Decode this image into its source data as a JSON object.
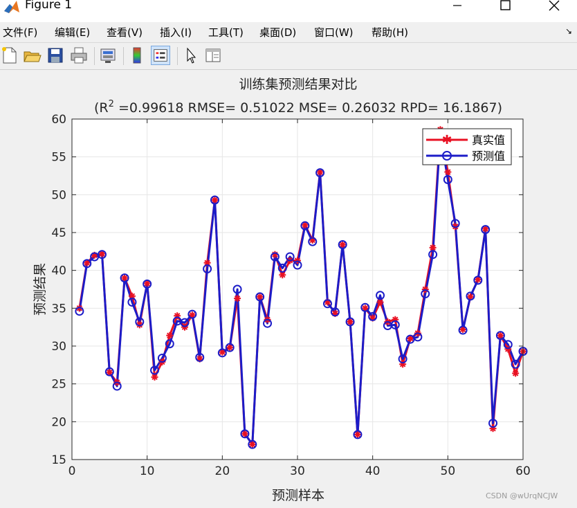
{
  "window": {
    "title": "Figure 1"
  },
  "menu": {
    "items": [
      "文件(F)",
      "编辑(E)",
      "查看(V)",
      "插入(I)",
      "工具(T)",
      "桌面(D)",
      "窗口(W)",
      "帮助(H)"
    ]
  },
  "toolbar": {
    "icons": [
      "new-figure-icon",
      "open-file-icon",
      "save-icon",
      "print-icon",
      "link-plot-icon",
      "insert-colorbar-icon",
      "insert-legend-icon",
      "edit-plot-icon",
      "property-inspector-icon"
    ]
  },
  "watermark": "CSDN @wUrqNCJW",
  "colors": {
    "real": "#e81123",
    "pred": "#1c1cc8",
    "grid": "#e6e6e6"
  },
  "chart_data": {
    "type": "line",
    "title": "训练集预测结果对比",
    "subtitle_parts": {
      "r2_base": "(R",
      "r2_sup": "2",
      "rest": " =0.99618 RMSE= 0.51022 MSE= 0.26032 RPD= 16.1867)"
    },
    "xlabel": "预测样本",
    "ylabel": "预测结果",
    "xlim": [
      0,
      60
    ],
    "ylim": [
      15,
      60
    ],
    "xticks": [
      0,
      10,
      20,
      30,
      40,
      50,
      60
    ],
    "yticks": [
      15,
      20,
      25,
      30,
      35,
      40,
      45,
      50,
      55,
      60
    ],
    "grid": true,
    "legend_position": "top-right",
    "x": [
      1,
      2,
      3,
      4,
      5,
      6,
      7,
      8,
      9,
      10,
      11,
      12,
      13,
      14,
      15,
      16,
      17,
      18,
      19,
      20,
      21,
      22,
      23,
      24,
      25,
      26,
      27,
      28,
      29,
      30,
      31,
      32,
      33,
      34,
      35,
      36,
      37,
      38,
      39,
      40,
      41,
      42,
      43,
      44,
      45,
      46,
      47,
      48,
      49,
      50,
      51,
      52,
      53,
      54,
      55,
      56,
      57,
      58,
      59,
      60
    ],
    "series": [
      {
        "name": "真实值",
        "marker": "asterisk",
        "color": "#e81123",
        "values": [
          35.0,
          41.0,
          42.0,
          42.2,
          26.5,
          25.2,
          39.0,
          36.6,
          32.8,
          38.3,
          25.9,
          27.9,
          31.4,
          34.0,
          32.5,
          34.1,
          28.3,
          41.0,
          49.3,
          29.2,
          29.8,
          36.3,
          18.4,
          17.0,
          36.5,
          33.5,
          42.1,
          39.4,
          41.3,
          41.3,
          46.0,
          44.0,
          53.0,
          35.8,
          34.3,
          43.4,
          33.2,
          18.3,
          35.0,
          33.7,
          35.8,
          33.2,
          33.5,
          27.6,
          31.0,
          31.7,
          37.5,
          43.0,
          58.6,
          53.0,
          45.8,
          32.2,
          36.5,
          38.8,
          45.5,
          19.1,
          31.4,
          29.6,
          26.4,
          29.3
        ]
      },
      {
        "name": "预测值",
        "marker": "circle",
        "color": "#1c1cc8",
        "values": [
          34.6,
          40.9,
          41.8,
          42.1,
          26.6,
          24.7,
          39.0,
          35.8,
          33.2,
          38.2,
          26.8,
          28.4,
          30.3,
          33.3,
          33.1,
          34.2,
          28.5,
          40.2,
          49.3,
          29.1,
          29.8,
          37.5,
          18.4,
          17.0,
          36.5,
          33.0,
          41.8,
          40.3,
          41.8,
          40.7,
          45.9,
          43.8,
          52.9,
          35.6,
          34.5,
          43.4,
          33.2,
          18.3,
          35.1,
          33.9,
          36.7,
          32.7,
          32.8,
          28.3,
          30.9,
          31.2,
          36.9,
          42.1,
          58.0,
          52.0,
          46.2,
          32.1,
          36.6,
          38.7,
          45.4,
          19.8,
          31.4,
          30.2,
          27.6,
          29.3
        ]
      }
    ]
  }
}
